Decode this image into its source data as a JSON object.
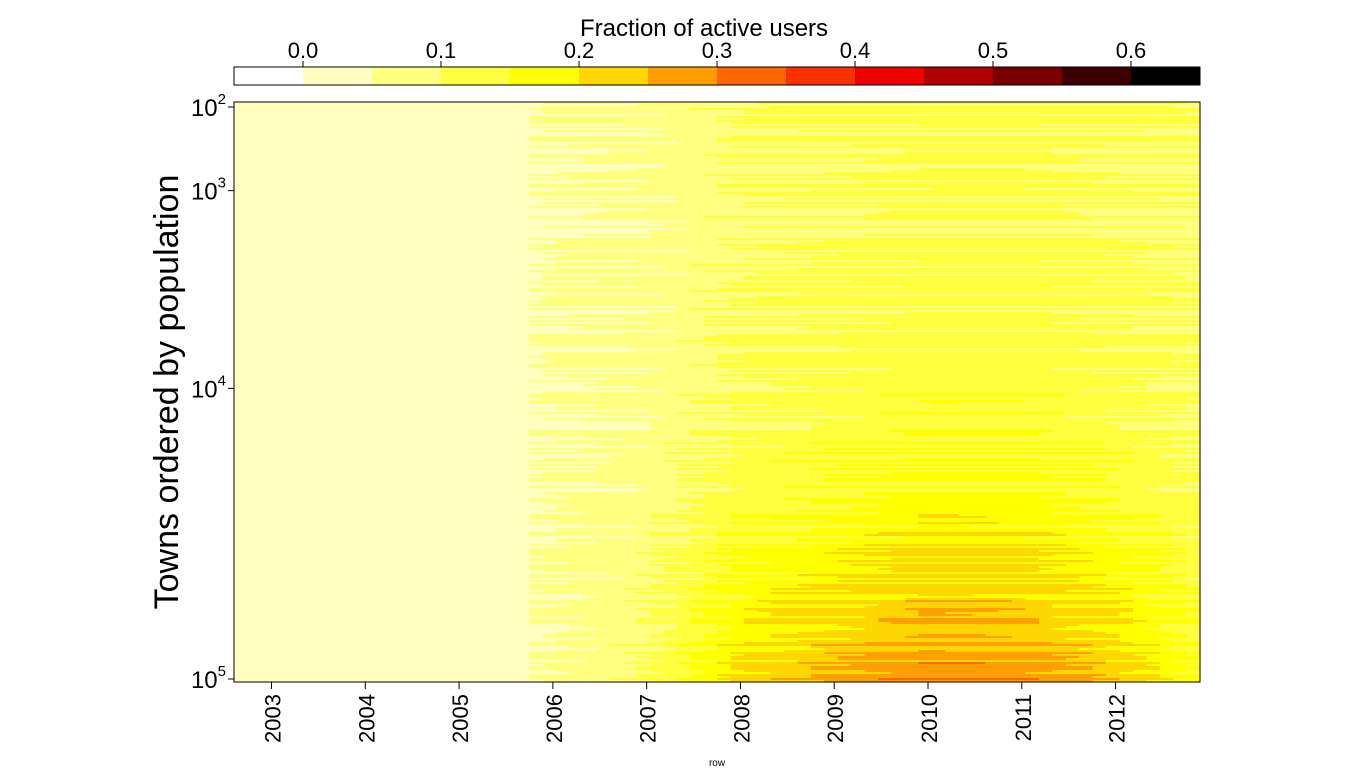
{
  "chart_data": {
    "type": "heatmap",
    "colorbar": {
      "title": "Fraction of active users",
      "tick_labels": [
        "0.0",
        "0.1",
        "0.2",
        "0.3",
        "0.4",
        "0.5",
        "0.6"
      ],
      "tick_values": [
        0.0,
        0.1,
        0.2,
        0.3,
        0.4,
        0.5,
        0.6
      ],
      "range": [
        -0.05,
        0.65
      ],
      "bin_width": 0.05,
      "colors": [
        "#ffffff",
        "#ffffc0",
        "#ffff80",
        "#ffff40",
        "#ffff00",
        "#ffd700",
        "#ffa000",
        "#ff6600",
        "#ff3000",
        "#ee0000",
        "#b00000",
        "#780000",
        "#3c0000",
        "#000000"
      ]
    },
    "x": {
      "label": "row",
      "tick_labels": [
        "2003",
        "2004",
        "2005",
        "2006",
        "2007",
        "2008",
        "2009",
        "2010",
        "2011",
        "2012"
      ],
      "range": [
        2002.6,
        2012.9
      ]
    },
    "y": {
      "label": "Towns ordered by population",
      "scale": "log",
      "inverted": true,
      "tick_labels": [
        {
          "base": "10",
          "exp": "2",
          "value": 100
        },
        {
          "base": "10",
          "exp": "3",
          "value": 1000
        },
        {
          "base": "10",
          "exp": "4",
          "value": 10000
        },
        {
          "base": "10",
          "exp": "5",
          "value": 100000
        }
      ]
    },
    "trend": {
      "description_keys": [
        "year",
        "fraction_small_towns",
        "fraction_large_towns"
      ],
      "years": [
        2003,
        2004,
        2005,
        2006,
        2007,
        2008,
        2009,
        2010,
        2011,
        2012,
        2012.9
      ],
      "top_rows": [
        0.0,
        0.0,
        0.0,
        0.05,
        0.06,
        0.09,
        0.1,
        0.11,
        0.11,
        0.1,
        0.09
      ],
      "bottom_rows": [
        0.01,
        0.01,
        0.02,
        0.06,
        0.1,
        0.22,
        0.26,
        0.3,
        0.29,
        0.24,
        0.15
      ]
    }
  }
}
